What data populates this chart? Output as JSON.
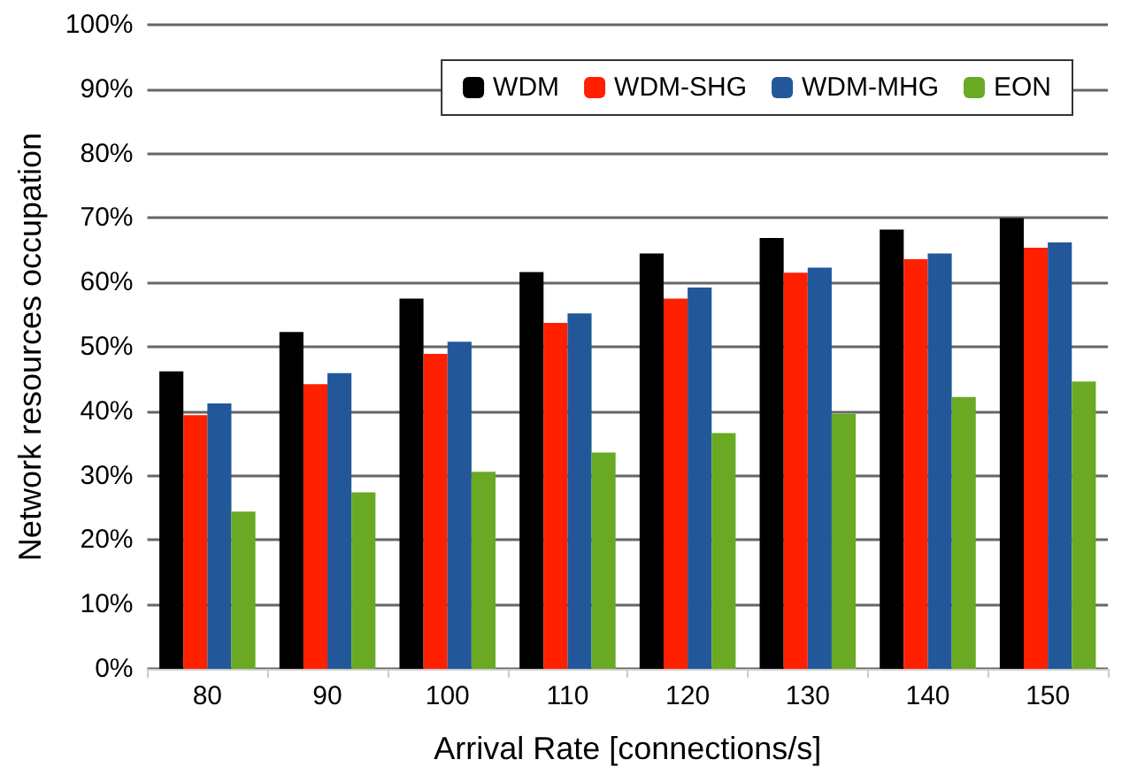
{
  "chart_data": {
    "type": "bar",
    "xlabel": "Arrival Rate [connections/s]",
    "ylabel": "Network resources occupation",
    "categories": [
      "80",
      "90",
      "100",
      "110",
      "120",
      "130",
      "140",
      "150"
    ],
    "series": [
      {
        "name": "WDM",
        "color": "#000000",
        "values": [
          46.2,
          52.3,
          57.5,
          61.6,
          64.5,
          66.9,
          68.2,
          70.0
        ]
      },
      {
        "name": "WDM-SHG",
        "color": "#ff2000",
        "values": [
          39.4,
          44.2,
          48.9,
          53.7,
          57.5,
          61.5,
          63.6,
          65.4
        ]
      },
      {
        "name": "WDM-MHG",
        "color": "#22589a",
        "values": [
          41.2,
          45.9,
          50.8,
          55.2,
          59.2,
          62.3,
          64.5,
          66.2
        ]
      },
      {
        "name": "EON",
        "color": "#6aa924",
        "values": [
          24.4,
          27.4,
          30.6,
          33.6,
          36.6,
          39.6,
          42.2,
          44.6
        ]
      }
    ],
    "ylim": [
      0,
      100
    ],
    "yticks": [
      {
        "value": 0,
        "label": "0%"
      },
      {
        "value": 10,
        "label": "10%"
      },
      {
        "value": 20,
        "label": "20%"
      },
      {
        "value": 30,
        "label": "30%"
      },
      {
        "value": 40,
        "label": "40%"
      },
      {
        "value": 50,
        "label": "50%"
      },
      {
        "value": 60,
        "label": "60%"
      },
      {
        "value": 70,
        "label": "70%"
      },
      {
        "value": 80,
        "label": "80%"
      },
      {
        "value": 90,
        "label": "90%"
      },
      {
        "value": 100,
        "label": "100%"
      }
    ],
    "grid": "y",
    "legend": "top right"
  }
}
